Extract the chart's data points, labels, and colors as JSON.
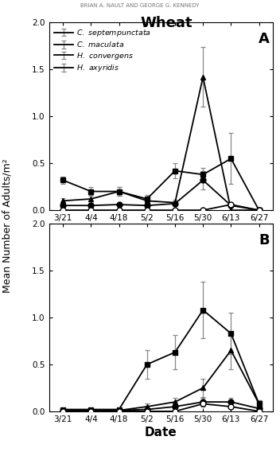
{
  "title": "Wheat",
  "xlabel": "Date",
  "ylabel": "Mean Number of Adults/m²",
  "x_labels": [
    "3/21",
    "4/4",
    "4/18",
    "5/2",
    "5/16",
    "5/30",
    "6/13",
    "6/27"
  ],
  "x_values": [
    0,
    1,
    2,
    3,
    4,
    5,
    6,
    7
  ],
  "ylim": [
    0,
    2.0
  ],
  "yticks": [
    0.0,
    0.5,
    1.0,
    1.5,
    2.0
  ],
  "panel_A": {
    "label": "A",
    "series": {
      "C. septempunctata": {
        "marker": "s",
        "fillstyle": "full",
        "y": [
          0.32,
          0.2,
          0.2,
          0.12,
          0.42,
          0.38,
          0.55,
          0.0
        ],
        "yerr": [
          0.04,
          0.05,
          0.05,
          0.04,
          0.08,
          0.07,
          0.27,
          0.0
        ],
        "x_indices": [
          0,
          1,
          2,
          3,
          4,
          5,
          6,
          7
        ]
      },
      "C. maculata": {
        "marker": "^",
        "fillstyle": "full",
        "y": [
          0.1,
          0.12,
          0.2,
          0.1,
          0.08,
          1.42,
          0.0,
          0.0
        ],
        "yerr": [
          0.03,
          0.04,
          0.05,
          0.03,
          0.03,
          0.32,
          0.0,
          0.0
        ],
        "x_indices": [
          0,
          1,
          2,
          3,
          4,
          5,
          6,
          7
        ]
      },
      "H. convergens": {
        "marker": "o",
        "fillstyle": "full",
        "y": [
          0.05,
          0.05,
          0.06,
          0.05,
          0.07,
          0.32,
          0.05,
          0.0
        ],
        "yerr": [
          0.02,
          0.02,
          0.02,
          0.02,
          0.02,
          0.1,
          0.02,
          0.0
        ],
        "x_indices": [
          0,
          1,
          2,
          3,
          4,
          5,
          6,
          7
        ]
      },
      "H. axyridis": {
        "marker": "o",
        "fillstyle": "none",
        "y": [
          0.0,
          0.0,
          0.0,
          0.0,
          0.0,
          0.0,
          0.06,
          0.0
        ],
        "yerr": [
          0.0,
          0.0,
          0.0,
          0.0,
          0.0,
          0.0,
          0.02,
          0.0
        ],
        "x_indices": [
          0,
          1,
          2,
          3,
          4,
          5,
          6,
          7
        ]
      }
    }
  },
  "panel_B": {
    "label": "B",
    "series": {
      "C. septempunctata": {
        "marker": "s",
        "fillstyle": "full",
        "y": [
          0.02,
          0.02,
          0.02,
          0.5,
          0.63,
          1.08,
          0.83,
          0.08
        ],
        "yerr": [
          0.01,
          0.01,
          0.01,
          0.15,
          0.18,
          0.3,
          0.22,
          0.04
        ],
        "x_indices": [
          0,
          1,
          2,
          3,
          4,
          5,
          6,
          7
        ]
      },
      "C. maculata": {
        "marker": "^",
        "fillstyle": "full",
        "y": [
          0.01,
          0.01,
          0.01,
          0.05,
          0.1,
          0.25,
          0.65,
          0.08
        ],
        "yerr": [
          0.01,
          0.01,
          0.01,
          0.03,
          0.04,
          0.1,
          0.2,
          0.04
        ],
        "x_indices": [
          0,
          1,
          2,
          3,
          4,
          5,
          6,
          7
        ]
      },
      "H. convergens": {
        "marker": "o",
        "fillstyle": "full",
        "y": [
          0.01,
          0.01,
          0.01,
          0.02,
          0.05,
          0.1,
          0.1,
          0.03
        ],
        "yerr": [
          0.01,
          0.01,
          0.01,
          0.01,
          0.02,
          0.04,
          0.04,
          0.02
        ],
        "x_indices": [
          0,
          1,
          2,
          3,
          4,
          5,
          6,
          7
        ]
      },
      "H. axyridis": {
        "marker": "o",
        "fillstyle": "none",
        "y": [
          0.0,
          0.0,
          0.0,
          0.0,
          0.0,
          0.08,
          0.05,
          0.0
        ],
        "yerr": [
          0.0,
          0.0,
          0.0,
          0.0,
          0.0,
          0.03,
          0.02,
          0.0
        ],
        "x_indices": [
          0,
          1,
          2,
          3,
          4,
          5,
          6,
          7
        ]
      }
    }
  },
  "line_color": "#000000",
  "error_color": "#888888",
  "background_color": "#ffffff",
  "header_text": "BRIAN A. NAULT AND GEORGE G. KENNEDY"
}
